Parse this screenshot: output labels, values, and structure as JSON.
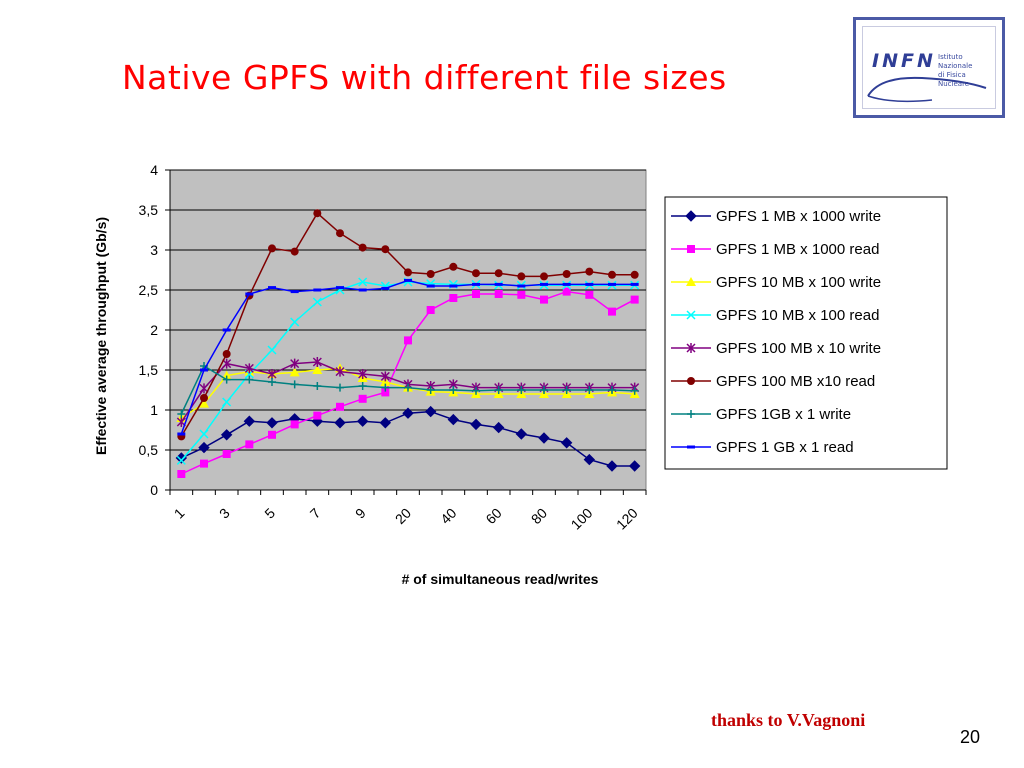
{
  "slide": {
    "title": "Native GPFS with different file sizes",
    "credit": "thanks to V.Vagnoni",
    "page_number": "20",
    "colors": {
      "title": "#ff0000",
      "credit": "#c00000",
      "logo": "#2f3e96"
    }
  },
  "logo": {
    "text": "INFN",
    "subtext_line1": "Istituto Nazionale",
    "subtext_line2": "di Fisica Nucleare",
    "icon": "infn-logo-icon"
  },
  "chart_data": {
    "type": "line",
    "title": "",
    "xlabel": "# of simultaneous read/writes",
    "ylabel": "Effective average throughput (Gb/s)",
    "ylim": [
      0,
      4
    ],
    "y_ticks": [
      "0",
      "0,5",
      "1",
      "1,5",
      "2",
      "2,5",
      "3",
      "3,5",
      "4"
    ],
    "x_tick_labels": [
      "1",
      "3",
      "5",
      "7",
      "9",
      "20",
      "40",
      "60",
      "80",
      "100",
      "120"
    ],
    "grid": "horizontal",
    "legend": "right",
    "plot_background": "#c0c0c0",
    "series": [
      {
        "name": "GPFS 1 MB x 1000 write",
        "color": "#000080",
        "marker": "diamond",
        "values": [
          0.4,
          0.53,
          0.69,
          0.86,
          0.84,
          0.89,
          0.86,
          0.84,
          0.86,
          0.84,
          0.96,
          0.98,
          0.88,
          0.82,
          0.78,
          0.7,
          0.65,
          0.59,
          0.38,
          0.3,
          0.3
        ]
      },
      {
        "name": "GPFS 1 MB x 1000 read",
        "color": "#ff00ff",
        "marker": "square",
        "values": [
          0.2,
          0.33,
          0.45,
          0.57,
          0.69,
          0.82,
          0.93,
          1.04,
          1.14,
          1.22,
          1.87,
          2.25,
          2.4,
          2.45,
          2.45,
          2.44,
          2.38,
          2.48,
          2.44,
          2.23,
          2.38
        ]
      },
      {
        "name": "GPFS 10 MB x 100 write",
        "color": "#ffff00",
        "marker": "triangle",
        "values": [
          0.9,
          1.08,
          1.43,
          1.48,
          1.45,
          1.47,
          1.5,
          1.52,
          1.4,
          1.35,
          1.28,
          1.23,
          1.22,
          1.2,
          1.2,
          1.2,
          1.2,
          1.2,
          1.2,
          1.22,
          1.2
        ]
      },
      {
        "name": "GPFS 10 MB x 100 read",
        "color": "#00ffff",
        "marker": "x",
        "values": [
          0.37,
          0.7,
          1.1,
          1.45,
          1.75,
          2.1,
          2.35,
          2.5,
          2.6,
          2.55,
          2.6,
          2.58,
          2.57,
          2.57,
          2.56,
          2.56,
          2.56,
          2.56,
          2.56,
          2.56,
          2.56
        ]
      },
      {
        "name": "GPFS 100 MB x 10 write",
        "color": "#800080",
        "marker": "star",
        "values": [
          0.85,
          1.27,
          1.58,
          1.52,
          1.45,
          1.58,
          1.6,
          1.48,
          1.45,
          1.42,
          1.32,
          1.3,
          1.32,
          1.28,
          1.28,
          1.28,
          1.28,
          1.28,
          1.28,
          1.28,
          1.28
        ]
      },
      {
        "name": "GPFS 100 MB x10 read",
        "color": "#800000",
        "marker": "circle",
        "values": [
          0.67,
          1.15,
          1.7,
          2.43,
          3.02,
          2.98,
          3.46,
          3.21,
          3.03,
          3.01,
          2.72,
          2.7,
          2.79,
          2.71,
          2.71,
          2.67,
          2.67,
          2.7,
          2.73,
          2.69,
          2.69
        ]
      },
      {
        "name": "GPFS 1GB x 1 write",
        "color": "#008080",
        "marker": "plus",
        "values": [
          0.95,
          1.55,
          1.38,
          1.38,
          1.35,
          1.32,
          1.3,
          1.28,
          1.3,
          1.28,
          1.28,
          1.25,
          1.25,
          1.24,
          1.25,
          1.25,
          1.25,
          1.25,
          1.25,
          1.25,
          1.24
        ]
      },
      {
        "name": "GPFS 1 GB x 1 read",
        "color": "#0000ff",
        "marker": "dash",
        "values": [
          0.7,
          1.5,
          2.0,
          2.45,
          2.53,
          2.48,
          2.5,
          2.53,
          2.5,
          2.52,
          2.62,
          2.55,
          2.55,
          2.57,
          2.57,
          2.55,
          2.57,
          2.57,
          2.57,
          2.57,
          2.57
        ]
      }
    ]
  }
}
